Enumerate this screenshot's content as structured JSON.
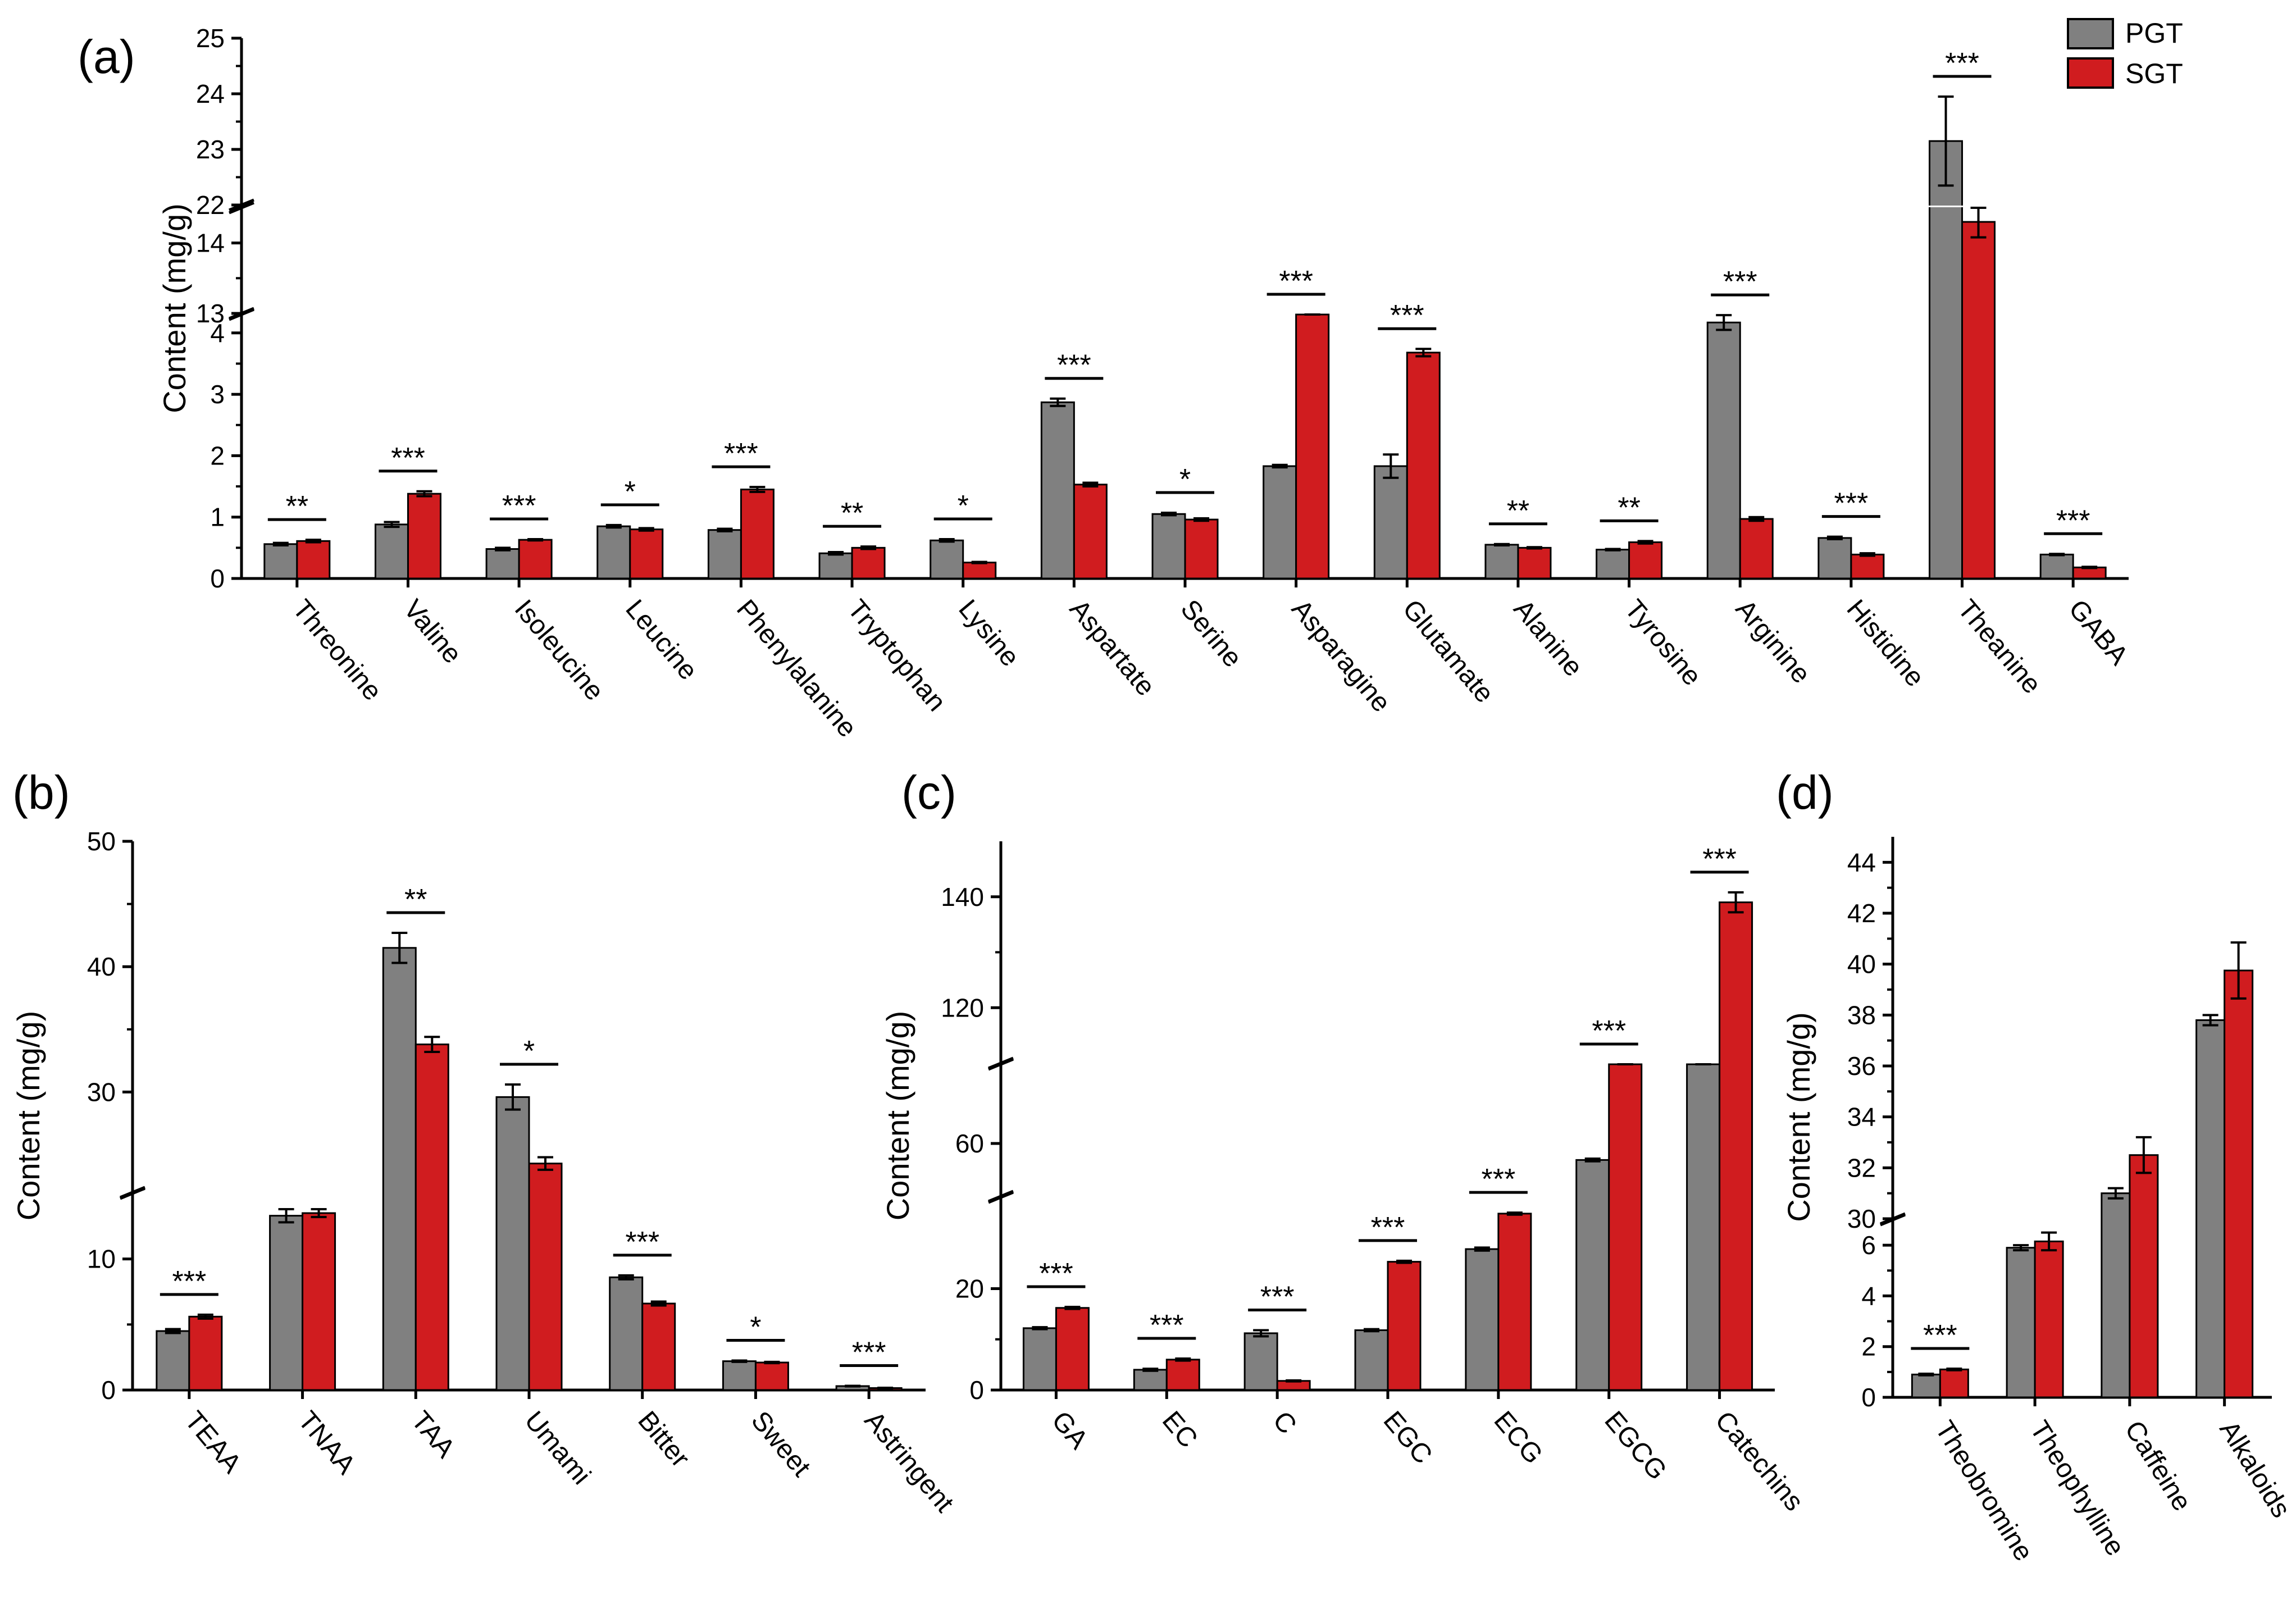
{
  "colors": {
    "pgt": "#808080",
    "sgt": "#d01c1f",
    "axis": "#000000"
  },
  "legend": {
    "pgt": "PGT",
    "sgt": "SGT"
  },
  "chart_data": [
    {
      "panel": "(a)",
      "type": "bar",
      "ylabel": "Content (mg/g)",
      "axis_breaks": [
        [
          4.3,
          13
        ],
        [
          14.5,
          22
        ]
      ],
      "y_ticks": [
        0,
        1,
        2,
        3,
        4,
        13,
        14,
        22,
        23,
        24,
        25
      ],
      "y_tick_labels": [
        "0",
        "1",
        "2",
        "3",
        "4",
        "13",
        "14",
        "22",
        "23",
        "24",
        "25"
      ],
      "categories": [
        "Threonine",
        "Valine",
        "Isoleucine",
        "Leucine",
        "Phenylalanine",
        "Tryptophan",
        "Lysine",
        "Aspartate",
        "Serine",
        "Asparagine",
        "Glutamate",
        "Alanine",
        "Tyrosine",
        "Arginine",
        "Histidine",
        "Theanine",
        "GABA"
      ],
      "series": [
        {
          "name": "PGT",
          "values": [
            0.56,
            0.88,
            0.48,
            0.85,
            0.79,
            0.41,
            0.62,
            2.87,
            1.05,
            1.83,
            1.83,
            0.55,
            0.47,
            4.17,
            0.66,
            23.15,
            0.39
          ],
          "errors": [
            0.02,
            0.04,
            0.02,
            0.02,
            0.02,
            0.02,
            0.02,
            0.06,
            0.02,
            0.02,
            0.19,
            0.01,
            0.01,
            0.12,
            0.02,
            0.8,
            0.01
          ]
        },
        {
          "name": "SGT",
          "values": [
            0.61,
            1.38,
            0.63,
            0.8,
            1.45,
            0.5,
            0.26,
            1.53,
            0.96,
            4.85,
            3.68,
            0.5,
            0.59,
            0.97,
            0.39,
            14.3,
            0.18
          ],
          "errors": [
            0.02,
            0.04,
            0.01,
            0.02,
            0.04,
            0.02,
            0.01,
            0.03,
            0.02,
            0.06,
            0.06,
            0.01,
            0.02,
            0.03,
            0.02,
            0.22,
            0.01
          ]
        }
      ],
      "significance": [
        "**",
        "***",
        "***",
        "*",
        "***",
        "**",
        "*",
        "***",
        "*",
        "***",
        "***",
        "**",
        "**",
        "***",
        "***",
        "***",
        "***"
      ]
    },
    {
      "panel": "(b)",
      "type": "bar",
      "ylabel": "Content (mg/g)",
      "axis_breaks": [
        [
          15,
          22
        ]
      ],
      "y_ticks": [
        0,
        10,
        30,
        40,
        50
      ],
      "y_tick_labels": [
        "0",
        "10",
        "30",
        "40",
        "50"
      ],
      "categories": [
        "TEAA",
        "TNAA",
        "TAA",
        "Umami",
        "Bitter",
        "Sweet",
        "Astringent"
      ],
      "series": [
        {
          "name": "PGT",
          "values": [
            4.5,
            13.3,
            41.5,
            29.6,
            8.6,
            2.2,
            0.3
          ],
          "errors": [
            0.15,
            0.5,
            1.2,
            1.0,
            0.15,
            0.05,
            0.02
          ]
        },
        {
          "name": "SGT",
          "values": [
            5.6,
            13.5,
            33.8,
            24.3,
            6.6,
            2.1,
            0.15
          ],
          "errors": [
            0.15,
            0.3,
            0.6,
            0.5,
            0.15,
            0.05,
            0.02
          ]
        }
      ],
      "significance": [
        "***",
        "",
        "**",
        "*",
        "***",
        "*",
        "***"
      ]
    },
    {
      "panel": "(c)",
      "type": "bar",
      "ylabel": "Content (mg/g)",
      "axis_breaks": [
        [
          38,
          52
        ],
        [
          72,
          110
        ]
      ],
      "y_ticks": [
        0,
        20,
        60,
        120,
        140
      ],
      "y_tick_labels": [
        "0",
        "20",
        "60",
        "120",
        "140"
      ],
      "categories": [
        "GA",
        "EC",
        "C",
        "EGC",
        "ECG",
        "EGCG",
        "Catechins"
      ],
      "series": [
        {
          "name": "PGT",
          "values": [
            12.2,
            4.0,
            11.2,
            11.8,
            27.8,
            57.5,
            105
          ],
          "errors": [
            0.2,
            0.2,
            0.6,
            0.2,
            0.3,
            0.2,
            0.8
          ]
        },
        {
          "name": "SGT",
          "values": [
            16.2,
            6.0,
            1.8,
            25.3,
            34.8,
            84,
            139
          ],
          "errors": [
            0.2,
            0.2,
            0.1,
            0.2,
            0.2,
            2.0,
            1.8
          ]
        }
      ],
      "significance": [
        "***",
        "***",
        "***",
        "***",
        "***",
        "***",
        "***"
      ]
    },
    {
      "panel": "(d)",
      "type": "bar",
      "ylabel": "Content (mg/g)",
      "axis_breaks": [
        [
          7,
          30
        ]
      ],
      "y_ticks": [
        0,
        2,
        4,
        6,
        30,
        32,
        34,
        36,
        38,
        40,
        42,
        44
      ],
      "y_tick_labels": [
        "0",
        "2",
        "4",
        "6",
        "30",
        "32",
        "34",
        "36",
        "38",
        "40",
        "42",
        "44"
      ],
      "categories": [
        "Theobromine",
        "Theophylline",
        "Caffeine",
        "Alkaloids"
      ],
      "series": [
        {
          "name": "PGT",
          "values": [
            0.9,
            5.9,
            31.0,
            37.8
          ],
          "errors": [
            0.03,
            0.1,
            0.2,
            0.2
          ]
        },
        {
          "name": "SGT",
          "values": [
            1.1,
            6.15,
            32.5,
            39.75
          ],
          "errors": [
            0.03,
            0.35,
            0.7,
            1.1
          ]
        }
      ],
      "significance": [
        "***",
        "",
        "",
        ""
      ]
    }
  ]
}
